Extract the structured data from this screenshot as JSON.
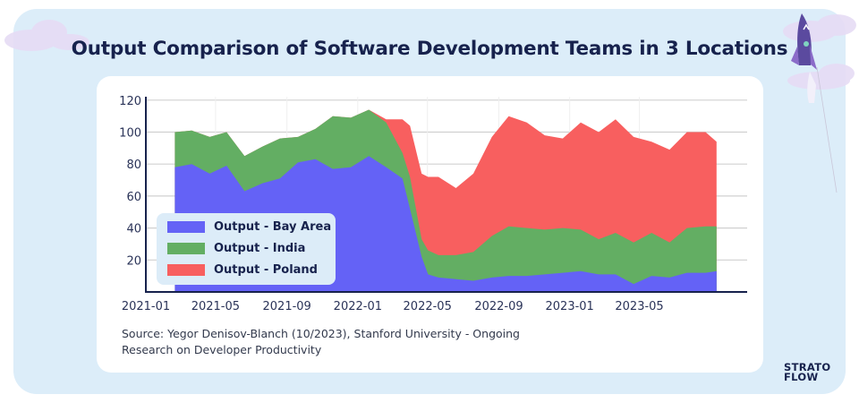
{
  "title": "Output Comparison of Software Development Teams in 3 Locations",
  "source_lines": [
    "Source: Yegor Denisov-Blanch (10/2023), Stanford University - Ongoing",
    "Research on Developer Productivity"
  ],
  "logo": {
    "line1": "STRATO",
    "line2": "FLOW"
  },
  "colors": {
    "background_panel": "#dcedf9",
    "title": "#17224d",
    "bay_area": "#6462f6",
    "india": "#63ae63",
    "poland": "#f85f5f"
  },
  "chart_data": {
    "type": "area",
    "stacked": true,
    "title": "",
    "xlabel": "",
    "ylabel": "",
    "ylim": [
      0,
      122
    ],
    "xlim": [
      "2021-01-01",
      "2023-11-05"
    ],
    "grid": true,
    "legend_placement": "bottom-left",
    "y_ticks": [
      20,
      40,
      60,
      80,
      100,
      120
    ],
    "x_ticks": [
      "2021-01",
      "2021-05",
      "2021-09",
      "2022-01",
      "2022-05",
      "2022-09",
      "2023-01",
      "2023-05"
    ],
    "x": [
      "2021-02-20",
      "2021-03-21",
      "2021-04-21",
      "2021-05-20",
      "2021-06-20",
      "2021-07-21",
      "2021-08-20",
      "2021-09-20",
      "2021-10-20",
      "2021-11-19",
      "2021-12-20",
      "2022-01-20",
      "2022-02-19",
      "2022-03-19",
      "2022-04-01",
      "2022-04-21",
      "2022-05-02",
      "2022-05-20",
      "2022-06-19",
      "2022-07-19",
      "2022-08-20",
      "2022-09-18",
      "2022-10-19",
      "2022-11-19",
      "2022-12-20",
      "2023-01-20",
      "2023-02-20",
      "2023-03-21",
      "2023-04-21",
      "2023-05-22",
      "2023-06-22",
      "2023-07-22",
      "2023-08-23",
      "2023-09-11"
    ],
    "series": [
      {
        "name": "Output - Bay Area",
        "values": [
          78,
          80,
          74,
          79,
          63,
          68,
          71,
          81,
          83,
          77,
          78,
          85,
          78,
          71,
          52,
          22,
          11,
          9,
          8,
          7,
          9,
          10,
          10,
          11,
          12,
          13,
          11,
          11,
          5,
          10,
          9,
          12,
          12,
          13
        ]
      },
      {
        "name": "Output - India",
        "values": [
          22,
          21,
          23,
          21,
          22,
          23,
          25,
          16,
          19,
          33,
          31,
          29,
          28,
          16,
          20,
          11,
          15,
          14,
          15,
          18,
          26,
          31,
          30,
          28,
          28,
          26,
          22,
          26,
          26,
          27,
          22,
          28,
          29,
          28
        ]
      },
      {
        "name": "Output - Poland",
        "values": [
          0,
          0,
          0,
          0,
          0,
          0,
          0,
          0,
          0,
          0,
          0,
          0,
          2,
          21,
          32,
          41,
          46,
          49,
          42,
          49,
          62,
          69,
          66,
          59,
          56,
          67,
          67,
          71,
          66,
          57,
          58,
          60,
          59,
          53
        ]
      }
    ]
  }
}
